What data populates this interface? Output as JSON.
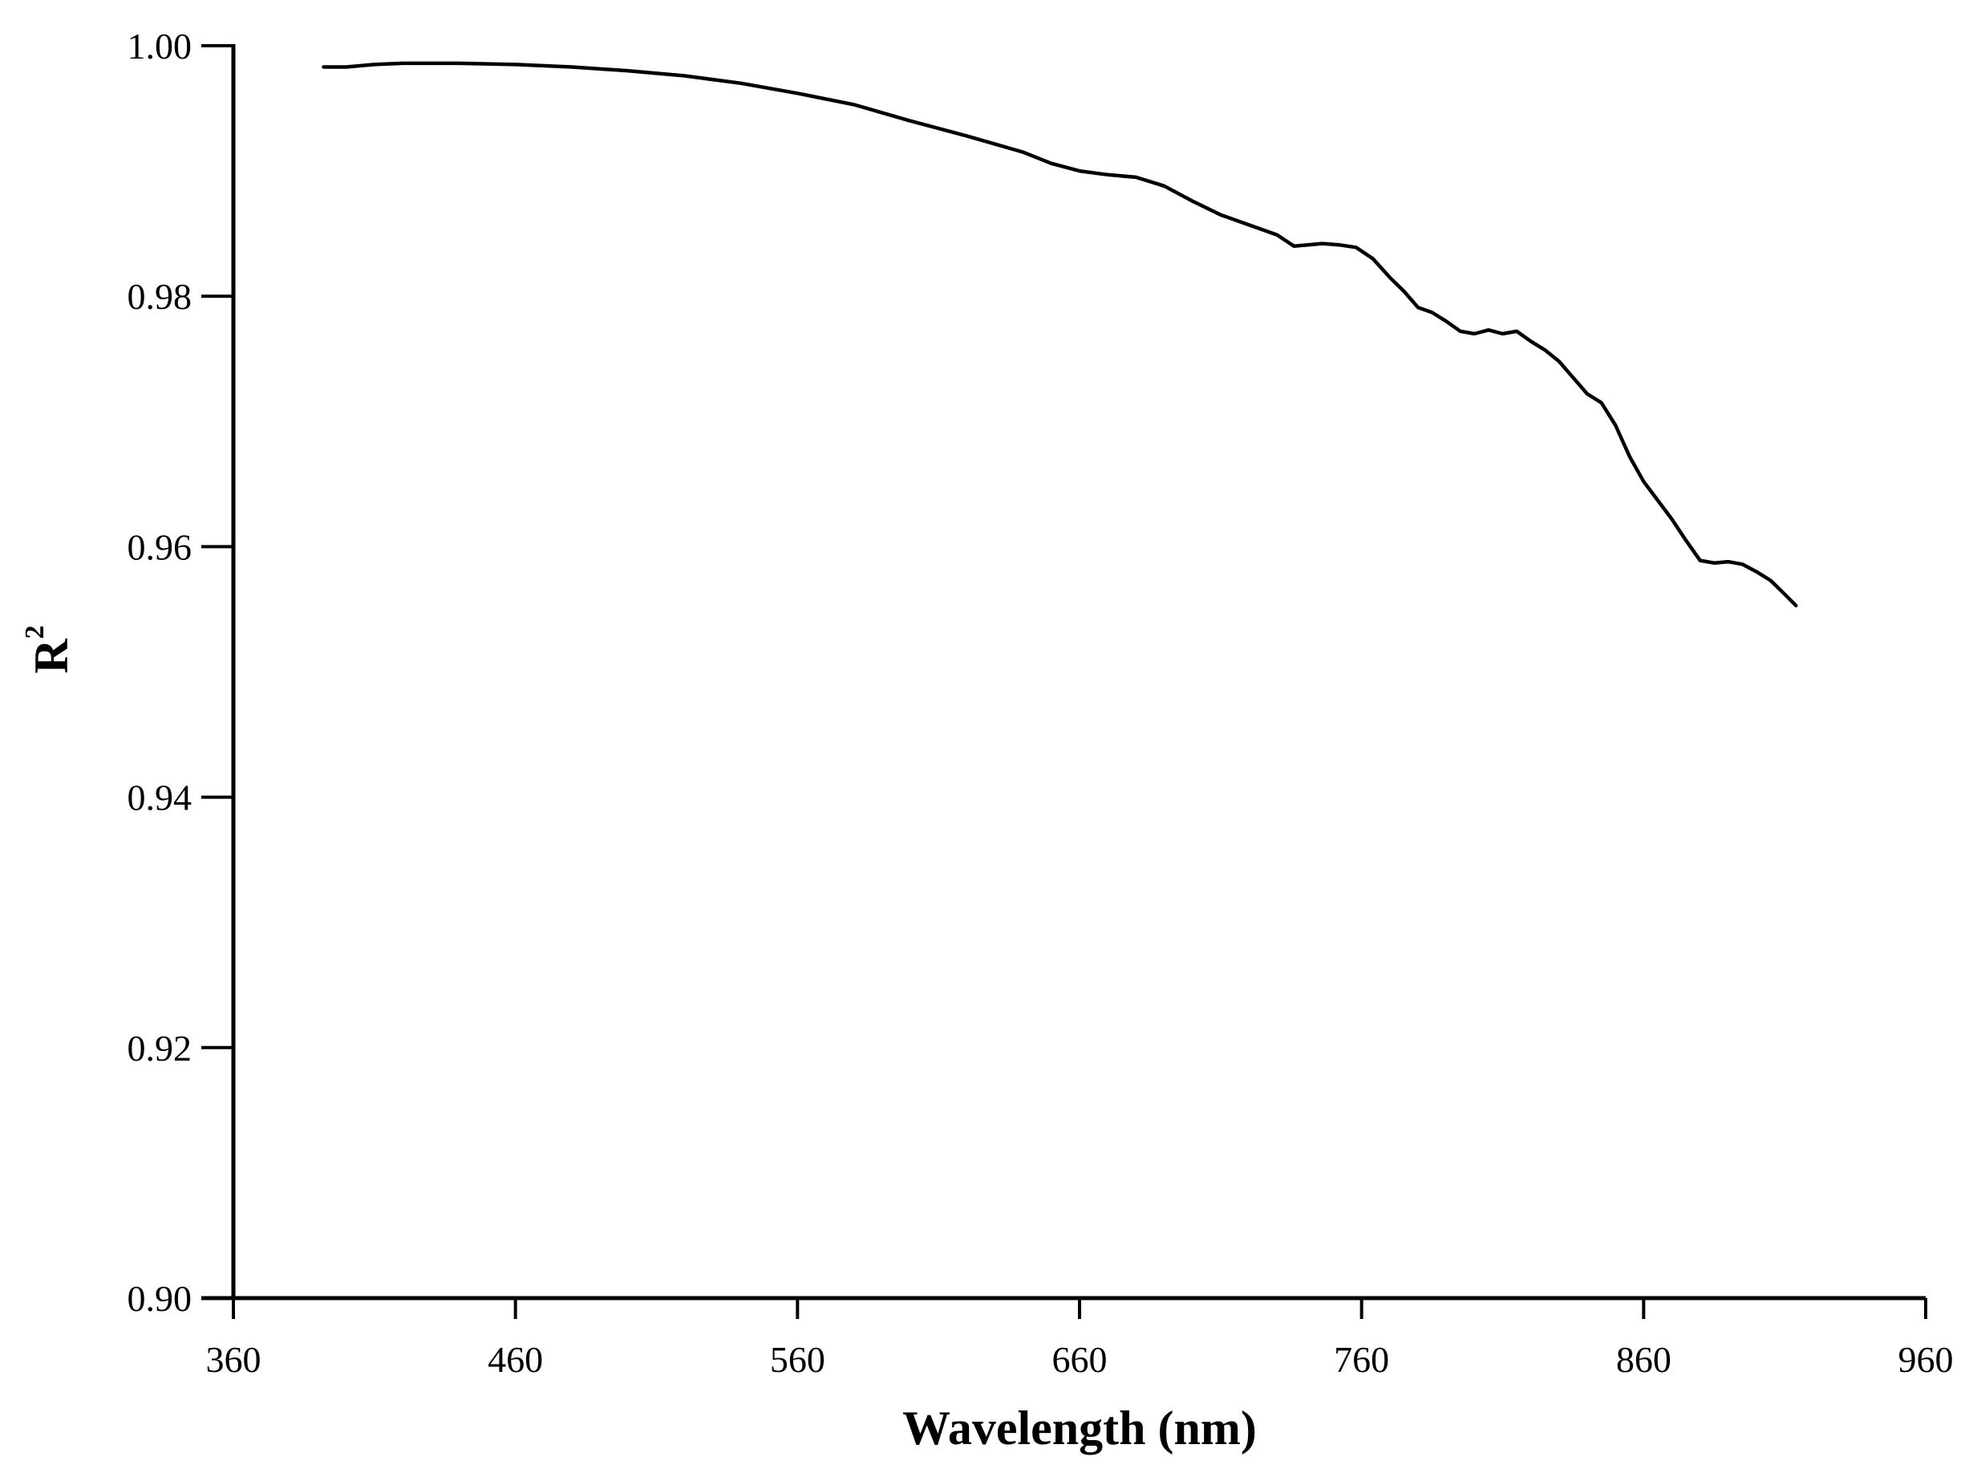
{
  "chart_data": {
    "type": "line",
    "title": "",
    "xlabel": "Wavelength (nm)",
    "ylabel": "R",
    "ylabel_superscript": "2",
    "xlim": [
      360,
      960
    ],
    "ylim": [
      0.9,
      1.0
    ],
    "x_ticks": [
      360,
      460,
      560,
      660,
      760,
      860,
      960
    ],
    "x_tick_labels": [
      "360",
      "460",
      "560",
      "660",
      "760",
      "860",
      "960"
    ],
    "y_ticks": [
      0.9,
      0.92,
      0.94,
      0.96,
      0.98,
      1.0
    ],
    "y_tick_labels": [
      "0.90",
      "0.92",
      "0.94",
      "0.96",
      "0.98",
      "1.00"
    ],
    "grid": false,
    "legend": "none",
    "line_color": "#000000",
    "series": [
      {
        "x": [
          392,
          400,
          410,
          420,
          430,
          440,
          460,
          480,
          500,
          520,
          540,
          560,
          580,
          600,
          620,
          640,
          650,
          660,
          670,
          680,
          690,
          700,
          710,
          720,
          730,
          736,
          741,
          746,
          752,
          758,
          764,
          770,
          775,
          780,
          785,
          790,
          795,
          800,
          805,
          810,
          815,
          820,
          825,
          830,
          835,
          840,
          845,
          850,
          855,
          860,
          865,
          870,
          875,
          880,
          885,
          890,
          895,
          900,
          905,
          910,
          914
        ],
        "y": [
          0.9983,
          0.9983,
          0.9985,
          0.9986,
          0.9986,
          0.9986,
          0.9985,
          0.9983,
          0.998,
          0.9976,
          0.997,
          0.9962,
          0.9953,
          0.994,
          0.9928,
          0.9915,
          0.9906,
          0.99,
          0.9897,
          0.9895,
          0.9888,
          0.9876,
          0.9865,
          0.9857,
          0.9849,
          0.984,
          0.9841,
          0.9842,
          0.9841,
          0.9839,
          0.983,
          0.9815,
          0.9804,
          0.9791,
          0.9787,
          0.978,
          0.9772,
          0.977,
          0.9773,
          0.977,
          0.9772,
          0.9764,
          0.9757,
          0.9748,
          0.9735,
          0.9722,
          0.9715,
          0.9697,
          0.9672,
          0.9652,
          0.9637,
          0.9622,
          0.9605,
          0.9589,
          0.9587,
          0.9588,
          0.9586,
          0.958,
          0.9573,
          0.9562,
          0.9553
        ]
      }
    ]
  }
}
